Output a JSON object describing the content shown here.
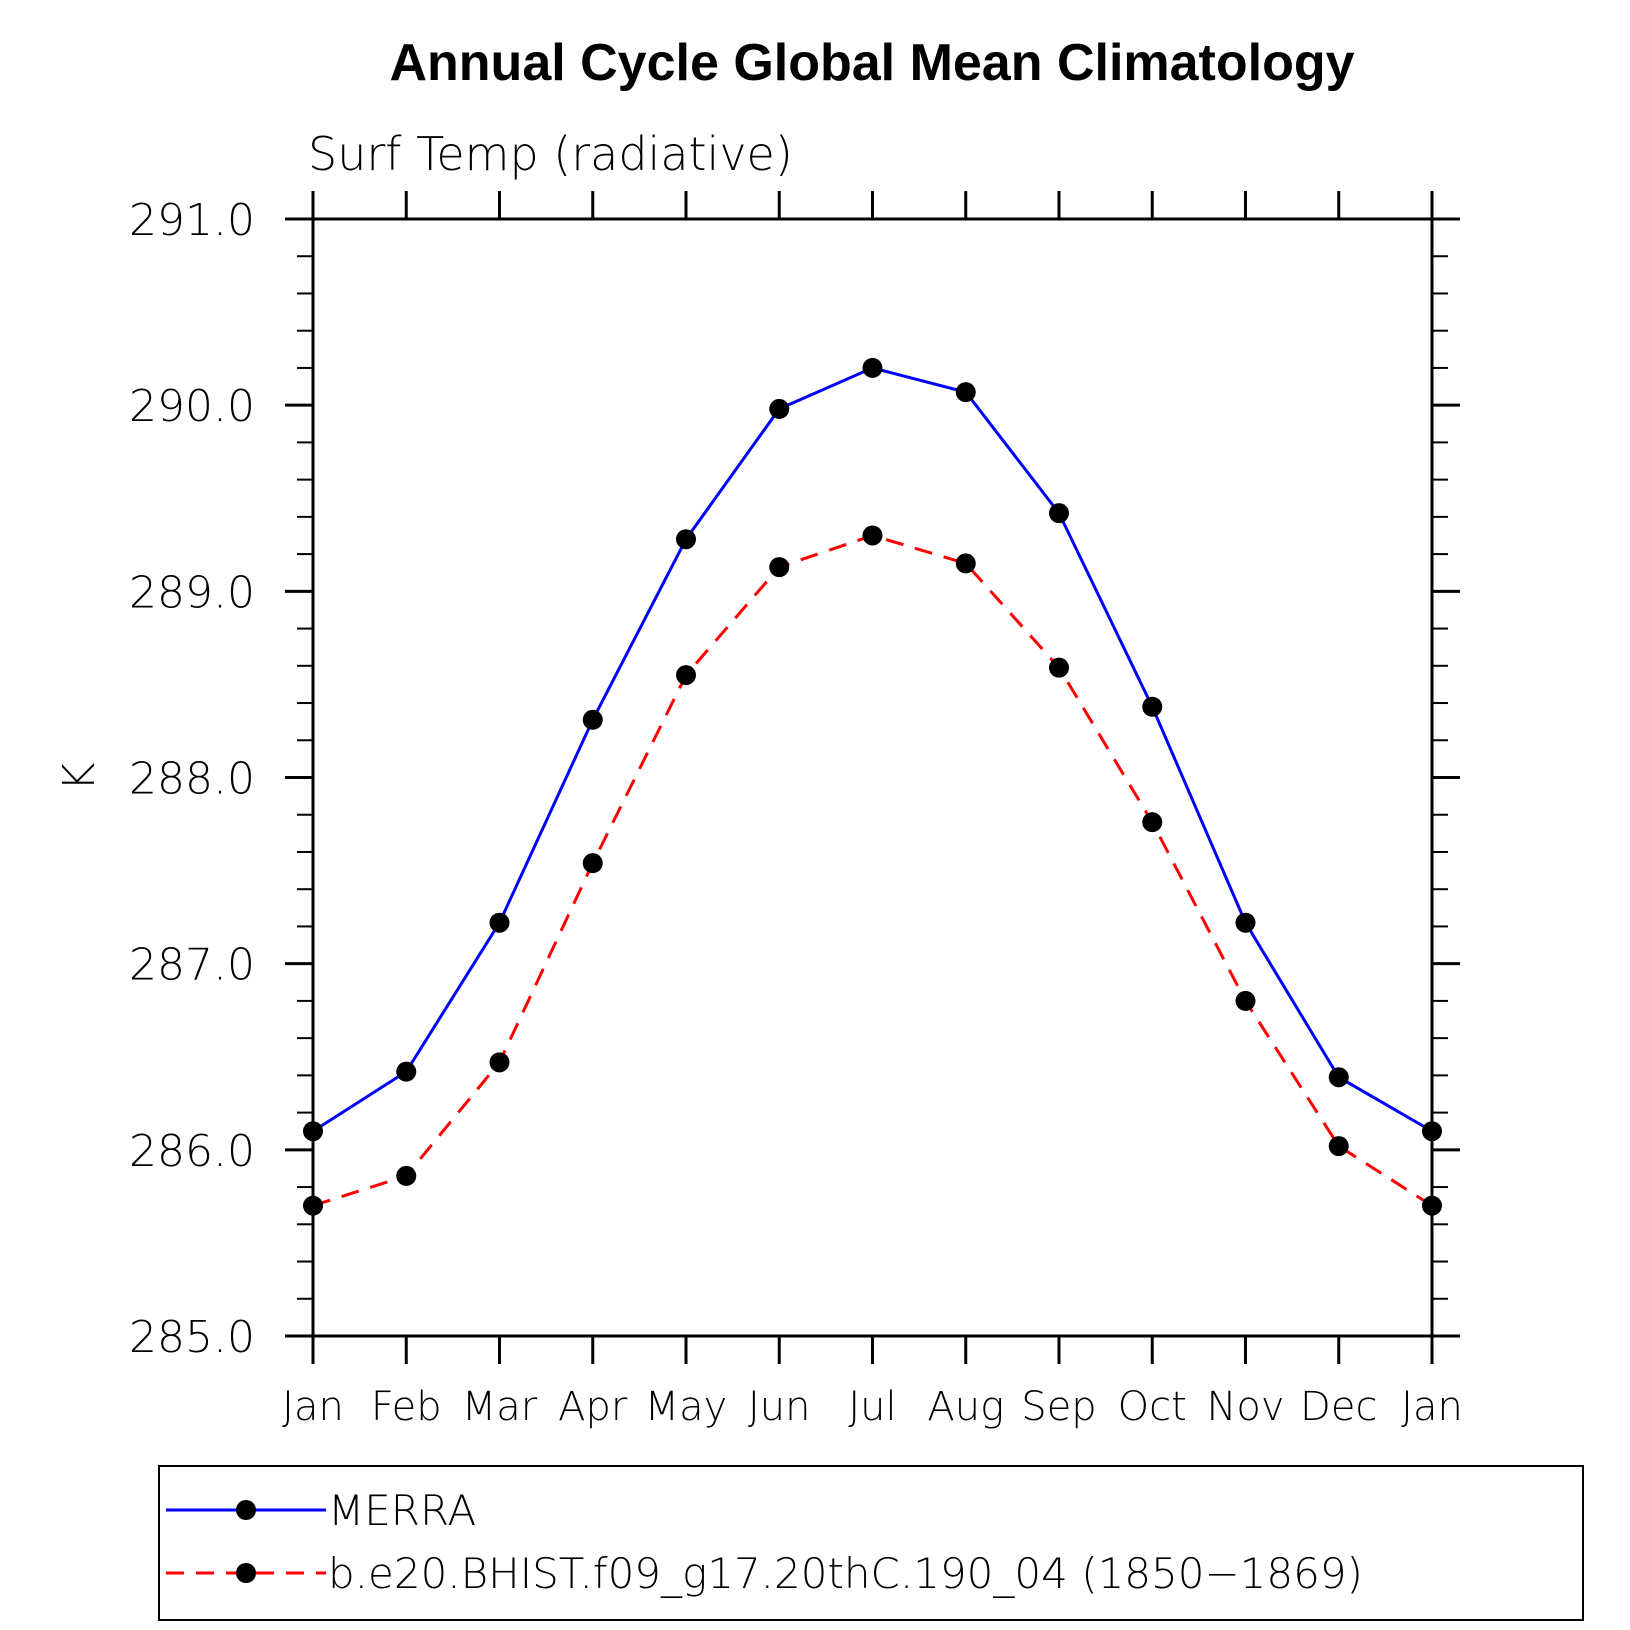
{
  "chart_data": {
    "type": "line",
    "title": "Annual Cycle Global Mean Climatology",
    "subtitle": "Surf Temp (radiative)",
    "xlabel": "",
    "ylabel": "K",
    "categories": [
      "Jan",
      "Feb",
      "Mar",
      "Apr",
      "May",
      "Jun",
      "Jul",
      "Aug",
      "Sep",
      "Oct",
      "Nov",
      "Dec",
      "Jan"
    ],
    "ylim": [
      285.0,
      291.0
    ],
    "yticks": [
      "285.0",
      "286.0",
      "287.0",
      "288.0",
      "289.0",
      "290.0",
      "291.0"
    ],
    "y_minor_step": 0.2,
    "grid": false,
    "legend_position": "bottom",
    "series": [
      {
        "name": "MERRA",
        "color": "#0000ff",
        "dash": "solid",
        "marker": "filled-circle",
        "values": [
          286.1,
          286.42,
          287.22,
          288.31,
          289.28,
          289.98,
          290.2,
          290.07,
          289.42,
          288.38,
          287.22,
          286.39,
          286.1
        ]
      },
      {
        "name": "b.e20.BHIST.f09_g17.20thC.190_04 (1850−1869)",
        "color": "#ff0000",
        "dash": "dashed",
        "marker": "filled-circle",
        "values": [
          285.7,
          285.86,
          286.47,
          287.54,
          288.55,
          289.13,
          289.3,
          289.15,
          288.59,
          287.76,
          286.8,
          286.02,
          285.7
        ]
      }
    ]
  }
}
